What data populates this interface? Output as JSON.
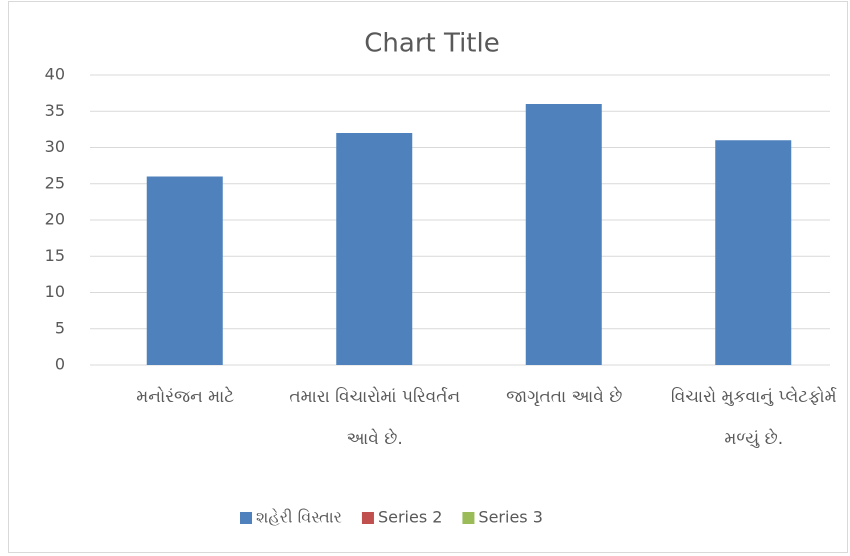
{
  "chart_data": {
    "type": "bar",
    "title": "Chart Title",
    "categories": [
      "મનોરંજન માટે",
      "તમારા વિચારોમાં પરિવર્તન આવે છે.",
      "જાગૃતતા આવે છે",
      "વિચારો મુકવાનું પ્લેટફોર્મ મળ્યું છે."
    ],
    "series": [
      {
        "name": "શહેરી વિસ્તાર",
        "color": "#4f81bd",
        "values": [
          26,
          32,
          36,
          31
        ]
      },
      {
        "name": "Series 2",
        "color": "#c0504d",
        "values": [
          null,
          null,
          null,
          null
        ]
      },
      {
        "name": "Series 3",
        "color": "#9bbb59",
        "values": [
          null,
          null,
          null,
          null
        ]
      }
    ],
    "ylim": [
      0,
      40
    ],
    "yticks": [
      0,
      5,
      10,
      15,
      20,
      25,
      30,
      35,
      40
    ],
    "grid": true,
    "legend": "bottom"
  }
}
